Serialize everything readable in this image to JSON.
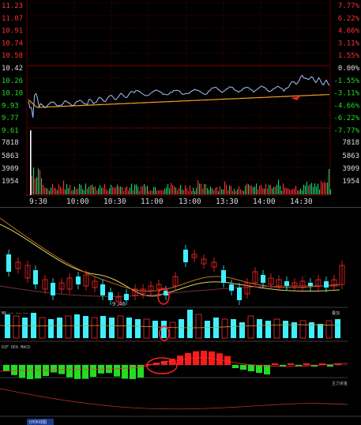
{
  "intraday": {
    "price_labels_left": [
      "11.23",
      "11.07",
      "10.91",
      "10.74",
      "10.58",
      "10.42",
      "10.26",
      "10.10",
      "9.93",
      "9.77",
      "9.61"
    ],
    "pct_labels_right": [
      "7.77%",
      "6.22%",
      "4.66%",
      "3.11%",
      "1.55%",
      "0.00%",
      "-1.55%",
      "-3.11%",
      "-4.66%",
      "-6.22%",
      "-7.77%"
    ],
    "volume_labels_left": [
      "7818",
      "5863",
      "3909",
      "1954"
    ],
    "volume_labels_right": [
      "7818",
      "5863",
      "3909",
      "1954"
    ],
    "time_labels": [
      "9:30",
      "10:00",
      "10:30",
      "11:00",
      "13:00",
      "13:30",
      "14:00",
      "14:30"
    ]
  },
  "kline": {
    "min_label": "9.46",
    "indicator_legend_1": "MA  ——  ——  ——",
    "indicator_legend_2": "DIF  DEA  MACD",
    "side_label_top": "叠加",
    "side_label_bottom": "主力资金",
    "bottom_tab": "分时K线图"
  },
  "colors": {
    "up": "#ff2a2a",
    "down": "#3ff0ff",
    "price_line": "#9fc4ff",
    "avg_line": "#f0a020",
    "grid": "#3a0000",
    "macd_up": "#ff1a1a",
    "macd_down": "#22dd22",
    "volume_green": "#1fcf6f"
  }
}
